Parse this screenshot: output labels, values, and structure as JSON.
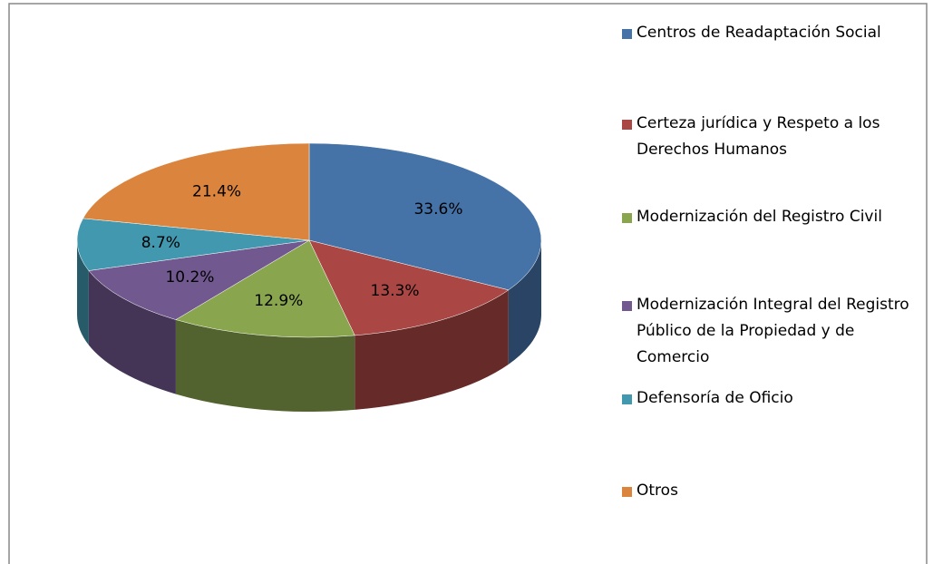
{
  "chart_data": {
    "type": "pie",
    "categories": [
      "Centros de Readaptación Social",
      "Certeza jurídica y Respeto  a los Derechos Humanos",
      "Modernización del Registro Civil",
      "Modernización Integral del Registro Público de la Propiedad y de Comercio",
      "Defensoría de Oficio",
      "Otros"
    ],
    "values": [
      33.6,
      13.3,
      12.9,
      10.2,
      8.7,
      21.4
    ],
    "value_labels": [
      "33.6%",
      "13.3%",
      "12.9%",
      "10.2%",
      "8.7%",
      "21.4%"
    ],
    "colors": [
      "#4572a7",
      "#aa4643",
      "#89a54e",
      "#71588f",
      "#4198af",
      "#db843d"
    ],
    "legend": "right"
  }
}
